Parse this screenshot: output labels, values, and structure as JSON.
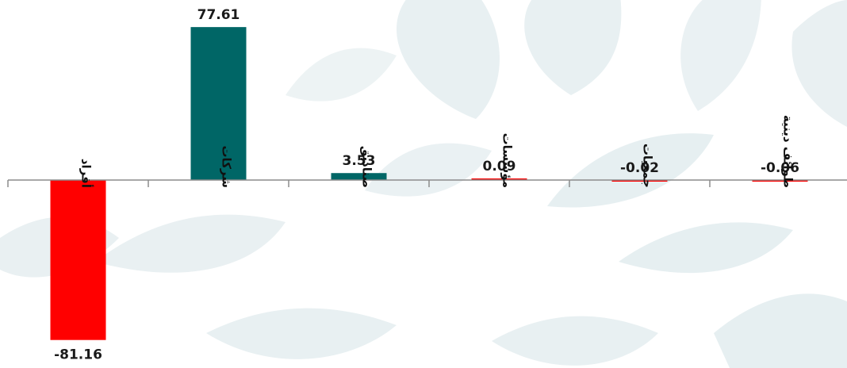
{
  "chart_data": {
    "type": "bar",
    "categories": [
      "أفراد",
      "شركات",
      "صناديق",
      "مؤسسات",
      "جمعيات",
      "طوائف دينية"
    ],
    "values": [
      -81.16,
      77.61,
      3.53,
      0.09,
      -0.02,
      -0.06
    ],
    "value_labels": [
      "-81.16",
      "77.61",
      "3.53",
      "0.09",
      "-0.02",
      "-0.06"
    ],
    "ylim": [
      -85,
      80
    ],
    "grid": false,
    "legend": "none",
    "colors": {
      "positive": "#006666",
      "negative": "#ff0000",
      "axis": "#8c8c8c",
      "watermark": "#e6eff1"
    }
  }
}
